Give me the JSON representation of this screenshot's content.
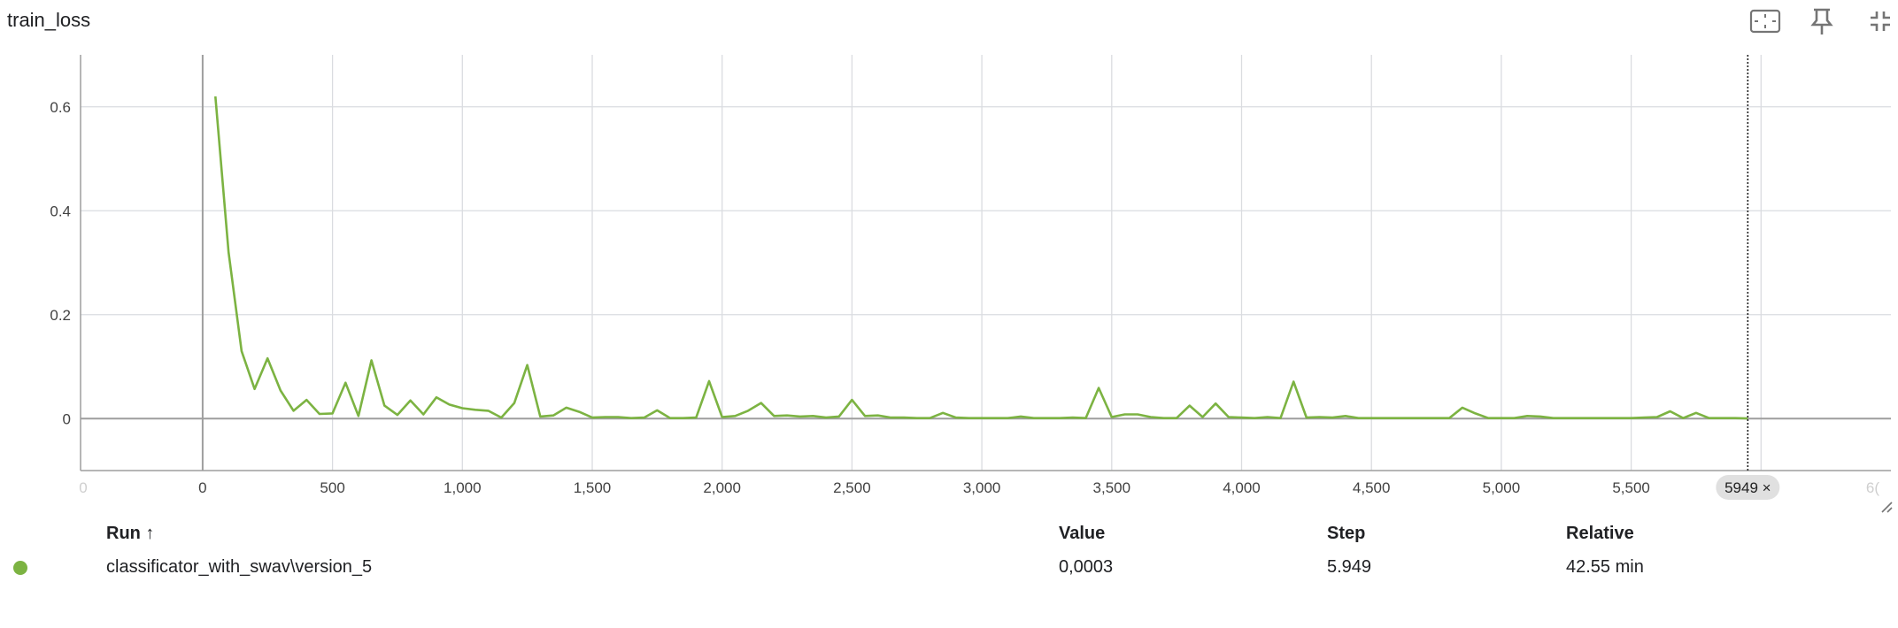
{
  "title": "train_loss",
  "toolbar": {
    "icons": [
      "fit-domain-icon",
      "pin-icon",
      "collapse-icon",
      "more-vert-icon"
    ]
  },
  "colors": {
    "series": "#7cb342",
    "grid": "#dadce0",
    "axis": "#9e9e9e",
    "zero_line": "#9e9e9e",
    "tick_text": "#424242",
    "faded_tick": "#cfcfcf",
    "hover_chip_bg": "#e0e0e0"
  },
  "chart_data": {
    "type": "line",
    "title": "train_loss",
    "xlabel": "",
    "ylabel": "",
    "xlim": [
      -470,
      6500
    ],
    "ylim": [
      -0.1,
      0.7
    ],
    "x_ticks": [
      "0",
      "500",
      "1,000",
      "1,500",
      "2,000",
      "2,500",
      "3,000",
      "3,500",
      "4,000",
      "4,500",
      "5,000",
      "5,500"
    ],
    "x_tick_values": [
      0,
      500,
      1000,
      1500,
      2000,
      2500,
      3000,
      3500,
      4000,
      4500,
      5000,
      5500
    ],
    "x_faded_ticks": [
      "0",
      "6("
    ],
    "x_faded_tick_values": [
      -460,
      6430
    ],
    "y_ticks": [
      "0",
      "0.2",
      "0.4",
      "0.6"
    ],
    "y_tick_values": [
      0,
      0.2,
      0.4,
      0.6
    ],
    "grid": true,
    "hover_step": 5949,
    "hover_chip_label": "5949 ×",
    "series": [
      {
        "x": [
          49,
          100,
          150,
          200,
          250,
          300,
          350,
          400,
          450,
          500,
          550,
          600,
          650,
          700,
          750,
          800,
          850,
          900,
          950,
          1000,
          1050,
          1100,
          1150,
          1200,
          1250,
          1300,
          1350,
          1400,
          1450,
          1500,
          1550,
          1600,
          1650,
          1700,
          1750,
          1800,
          1850,
          1900,
          1950,
          2000,
          2050,
          2100,
          2150,
          2200,
          2250,
          2300,
          2350,
          2400,
          2450,
          2500,
          2550,
          2600,
          2650,
          2700,
          2750,
          2800,
          2850,
          2900,
          2950,
          3000,
          3050,
          3100,
          3150,
          3200,
          3250,
          3300,
          3350,
          3400,
          3450,
          3500,
          3550,
          3600,
          3650,
          3700,
          3750,
          3800,
          3850,
          3900,
          3950,
          4000,
          4050,
          4100,
          4150,
          4200,
          4250,
          4300,
          4350,
          4400,
          4450,
          4500,
          4550,
          4600,
          4650,
          4700,
          4750,
          4800,
          4850,
          4900,
          4950,
          5000,
          5050,
          5100,
          5150,
          5200,
          5250,
          5300,
          5350,
          5400,
          5450,
          5500,
          5550,
          5600,
          5650,
          5700,
          5750,
          5800,
          5850,
          5900,
          5949
        ],
        "values": [
          0.62,
          0.32,
          0.13,
          0.057,
          0.116,
          0.054,
          0.015,
          0.036,
          0.009,
          0.01,
          0.069,
          0.005,
          0.112,
          0.025,
          0.007,
          0.035,
          0.008,
          0.041,
          0.027,
          0.02,
          0.017,
          0.015,
          0.002,
          0.03,
          0.103,
          0.004,
          0.006,
          0.021,
          0.013,
          0.002,
          0.003,
          0.003,
          0.001,
          0.002,
          0.016,
          0.001,
          0.001,
          0.002,
          0.072,
          0.003,
          0.005,
          0.015,
          0.03,
          0.005,
          0.006,
          0.004,
          0.005,
          0.002,
          0.004,
          0.036,
          0.005,
          0.006,
          0.002,
          0.002,
          0.001,
          0.001,
          0.011,
          0.002,
          0.001,
          0.001,
          0.001,
          0.001,
          0.004,
          0.001,
          0.001,
          0.001,
          0.002,
          0.001,
          0.059,
          0.003,
          0.008,
          0.008,
          0.003,
          0.001,
          0.001,
          0.025,
          0.003,
          0.029,
          0.003,
          0.002,
          0.001,
          0.003,
          0.001,
          0.071,
          0.002,
          0.003,
          0.002,
          0.005,
          0.001,
          0.001,
          0.001,
          0.001,
          0.001,
          0.001,
          0.001,
          0.001,
          0.021,
          0.01,
          0.001,
          0.001,
          0.001,
          0.005,
          0.004,
          0.001,
          0.001,
          0.001,
          0.001,
          0.001,
          0.001,
          0.001,
          0.002,
          0.003,
          0.014,
          0.001,
          0.011,
          0.001,
          0.001,
          0.001,
          0.0003
        ]
      }
    ]
  },
  "table": {
    "headers": {
      "run": "Run ↑",
      "value": "Value",
      "step": "Step",
      "relative": "Relative"
    },
    "rows": [
      {
        "run": "classificator_with_swav\\version_5",
        "value": "0,0003",
        "step": "5.949",
        "relative": "42.55 min"
      }
    ]
  }
}
